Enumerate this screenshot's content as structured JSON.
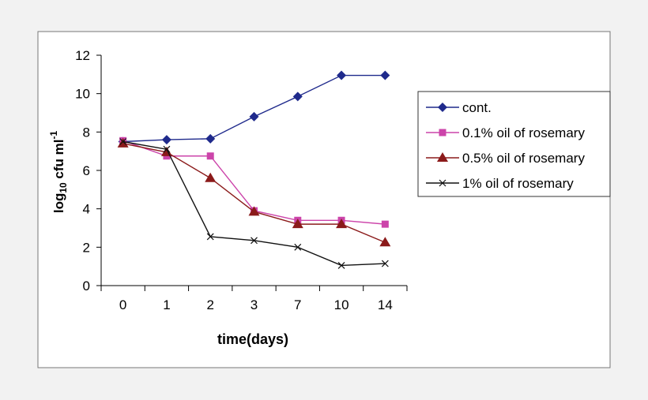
{
  "chart_data": {
    "type": "line",
    "title": "",
    "xlabel": "time(days)",
    "ylabel": "log10 cfu ml-1",
    "ylabel_parts": {
      "base": "log",
      "sub": "10",
      "main": " cfu ml",
      "sup": "-1"
    },
    "categories": [
      "0",
      "1",
      "2",
      "3",
      "7",
      "10",
      "14"
    ],
    "ylim": [
      0,
      12
    ],
    "yticks": [
      0,
      2,
      4,
      6,
      8,
      10,
      12
    ],
    "grid": false,
    "legend_position": "right",
    "series": [
      {
        "name": "cont.",
        "marker": "diamond",
        "color": "#1f2a8c",
        "values": [
          7.5,
          7.6,
          7.65,
          8.8,
          9.85,
          10.95,
          10.95
        ]
      },
      {
        "name": "0.1% oil of rosemary",
        "marker": "square",
        "color": "#cc44aa",
        "values": [
          7.55,
          6.75,
          6.75,
          3.9,
          3.4,
          3.4,
          3.2
        ]
      },
      {
        "name": "0.5% oil of rosemary",
        "marker": "triangle",
        "color": "#8b1a1a",
        "values": [
          7.4,
          6.95,
          5.6,
          3.85,
          3.2,
          3.2,
          2.25
        ]
      },
      {
        "name": "1% oil of rosemary",
        "marker": "x",
        "color": "#111111",
        "values": [
          7.5,
          7.1,
          2.55,
          2.35,
          2.0,
          1.05,
          1.15
        ]
      }
    ]
  }
}
